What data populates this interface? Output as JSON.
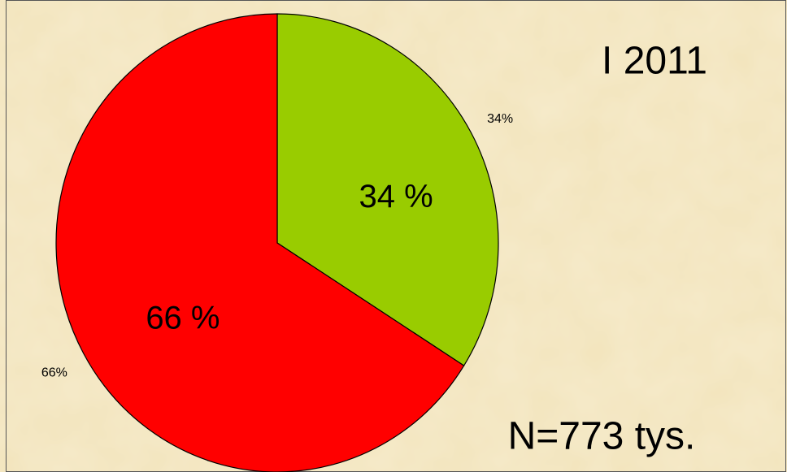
{
  "chart_data": {
    "type": "pie",
    "title": "I 2011",
    "annotation": "N=773 tys.",
    "categories": [
      null,
      null
    ],
    "values": [
      34,
      66
    ],
    "value_labels": [
      "34%",
      "66%"
    ],
    "inner_value_labels": [
      "34 %",
      "66 %"
    ],
    "colors": [
      "#99cc00",
      "#ff0000"
    ]
  }
}
